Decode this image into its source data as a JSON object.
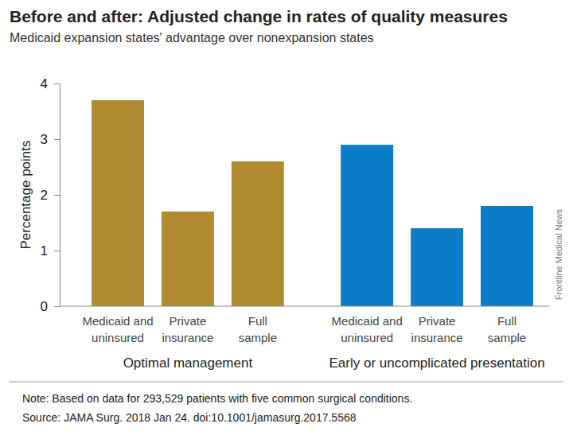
{
  "chart_data": {
    "type": "bar",
    "title": "Before and after: Adjusted change in rates of quality measures",
    "subtitle": "Medicaid expansion states' advantage over nonexpansion states",
    "y_label": "Percentage points",
    "categories": [
      "Medicaid and uninsured",
      "Private insurance",
      "Full sample"
    ],
    "series": [
      {
        "name": "Optimal management",
        "color": "#b08b2f",
        "values": [
          3.7,
          1.7,
          2.6
        ]
      },
      {
        "name": "Early or uncomplicated presentation",
        "color": "#0b7dc8",
        "values": [
          2.9,
          1.4,
          1.8
        ]
      }
    ],
    "ylim": [
      0,
      4
    ],
    "yticks": [
      0,
      1,
      2,
      3,
      4
    ],
    "grid": false,
    "note": "Note: Based on data for 293,529 patients with five common surgical conditions.",
    "source": "Source: JAMA Surg. 2018 Jan 24. doi:10.1001/jamasurg.2017.5568",
    "credit": "Frontline Medical News"
  }
}
